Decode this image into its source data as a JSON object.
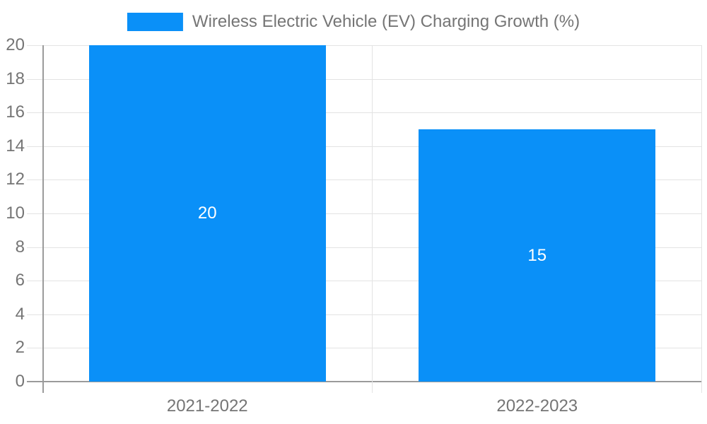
{
  "chart_data": {
    "type": "bar",
    "title": "",
    "legend": [
      "Wireless Electric Vehicle (EV) Charging Growth (%)"
    ],
    "legend_position": "top-center",
    "categories": [
      "2021-2022",
      "2022-2023"
    ],
    "series": [
      {
        "name": "Wireless Electric Vehicle (EV) Charging Growth (%)",
        "values": [
          20,
          15
        ],
        "data_labels": [
          "20",
          "15"
        ]
      }
    ],
    "xlabel": "",
    "ylabel": "",
    "ylim": [
      0,
      20
    ],
    "yticks": [
      0,
      2,
      4,
      6,
      8,
      10,
      12,
      14,
      16,
      18,
      20
    ],
    "grid": true,
    "colors": {
      "bar": "#0a90f8",
      "grid": "#e3e3e3",
      "axis": "#9b9b9b",
      "tick_label": "#757575",
      "data_label": "#ffffff",
      "background": "#ffffff"
    }
  }
}
